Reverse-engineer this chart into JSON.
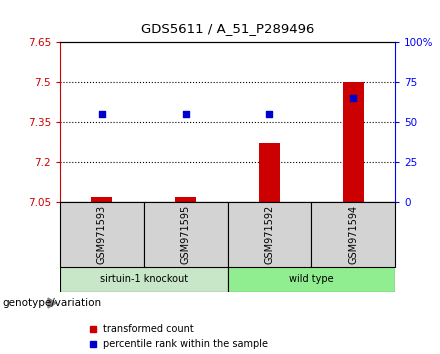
{
  "title": "GDS5611 / A_51_P289496",
  "samples": [
    "GSM971593",
    "GSM971595",
    "GSM971592",
    "GSM971594"
  ],
  "bar_values": [
    7.07,
    7.07,
    7.27,
    7.5
  ],
  "dot_values": [
    55,
    55,
    55,
    65
  ],
  "bar_bottom": 7.05,
  "ylim_left": [
    7.05,
    7.65
  ],
  "ylim_right": [
    0,
    100
  ],
  "yticks_left": [
    7.05,
    7.2,
    7.35,
    7.5,
    7.65
  ],
  "ytick_labels_left": [
    "7.05",
    "7.2",
    "7.35",
    "7.5",
    "7.65"
  ],
  "yticks_right": [
    0,
    25,
    50,
    75,
    100
  ],
  "ytick_labels_right": [
    "0",
    "25",
    "50",
    "75",
    "100%"
  ],
  "grid_yticks": [
    7.5,
    7.35,
    7.2
  ],
  "bar_color": "#cc0000",
  "dot_color": "#0000cc",
  "bar_width": 0.25,
  "legend_labels": [
    "transformed count",
    "percentile rank within the sample"
  ],
  "genotype_label": "genotype/variation",
  "background_color": "#ffffff",
  "plot_bg_color": "#ffffff",
  "border_color": "#000000",
  "group1_color": "#c8e6c8",
  "group2_color": "#90ee90",
  "sample_box_color": "#d3d3d3"
}
